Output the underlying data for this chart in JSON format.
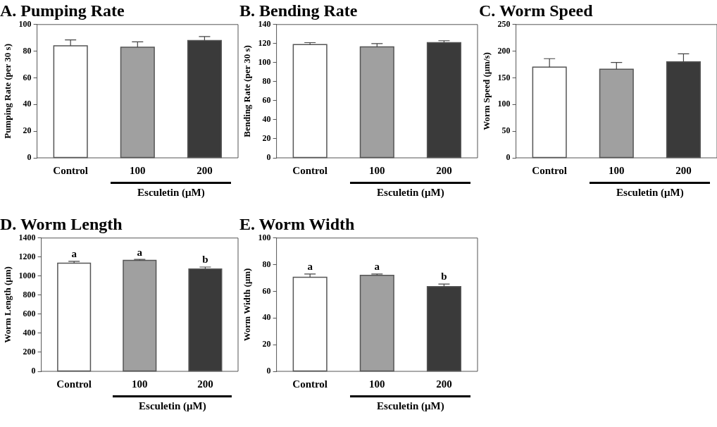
{
  "chart_data": [
    {
      "type": "bar",
      "title": "A. Pumping Rate",
      "xlabel": "Esculetin (μM)",
      "ylabel": "Pumping Rate (per 30 s)",
      "categories": [
        "Control",
        "100",
        "200"
      ],
      "values": [
        84,
        83,
        88
      ],
      "colors": [
        "#ffffff",
        "#a0a0a0",
        "#3a3a3a"
      ],
      "errors": [
        [
          84,
          88.5
        ],
        [
          83,
          87
        ],
        [
          88,
          91
        ]
      ],
      "ylim": [
        0,
        100
      ],
      "yticks": [
        0,
        20,
        40,
        60,
        80,
        100
      ]
    },
    {
      "type": "bar",
      "title": "B. Bending Rate",
      "xlabel": "Esculetin (μM)",
      "ylabel": "Bending Rate (per 30 s)",
      "categories": [
        "Control",
        "100",
        "200"
      ],
      "values": [
        119,
        116.5,
        121
      ],
      "colors": [
        "#ffffff",
        "#a0a0a0",
        "#3a3a3a"
      ],
      "errors": [
        [
          119,
          121
        ],
        [
          116.5,
          120
        ],
        [
          121,
          123
        ]
      ],
      "ylim": [
        0,
        140
      ],
      "yticks": [
        0,
        20,
        40,
        60,
        80,
        100,
        120,
        140
      ]
    },
    {
      "type": "bar",
      "title": "C. Worm Speed",
      "xlabel": "Esculetin (μM)",
      "ylabel": "Worm Speed (μm/s)",
      "categories": [
        "Control",
        "100",
        "200"
      ],
      "values": [
        170,
        166,
        180
      ],
      "colors": [
        "#ffffff",
        "#a0a0a0",
        "#3a3a3a"
      ],
      "errors": [
        [
          170,
          186
        ],
        [
          166,
          179
        ],
        [
          180,
          195
        ]
      ],
      "ylim": [
        0,
        250
      ],
      "yticks": [
        0,
        50,
        100,
        150,
        200,
        250
      ]
    },
    {
      "type": "bar",
      "title": "D. Worm Length",
      "xlabel": "Esculetin (μM)",
      "ylabel": "Worm Length (μm)",
      "categories": [
        "Control",
        "100",
        "200"
      ],
      "values": [
        1135,
        1165,
        1075
      ],
      "colors": [
        "#ffffff",
        "#a0a0a0",
        "#3a3a3a"
      ],
      "errors": [
        [
          1135,
          1155
        ],
        [
          1165,
          1175
        ],
        [
          1075,
          1095
        ]
      ],
      "ylim": [
        0,
        1400
      ],
      "yticks": [
        0,
        200,
        400,
        600,
        800,
        1000,
        1200,
        1400
      ],
      "annotations": [
        {
          "text": "a",
          "x": "Control",
          "y": 1155
        },
        {
          "text": "a",
          "x": "100",
          "y": 1175
        },
        {
          "text": "b",
          "x": "200",
          "y": 1095
        }
      ]
    },
    {
      "type": "bar",
      "title": "E. Worm Width",
      "xlabel": "Esculetin (μM)",
      "ylabel": "Worm Width (μm)",
      "categories": [
        "Control",
        "100",
        "200"
      ],
      "values": [
        70.5,
        72,
        63.5
      ],
      "colors": [
        "#ffffff",
        "#a0a0a0",
        "#3a3a3a"
      ],
      "errors": [
        [
          70.5,
          73
        ],
        [
          72,
          73
        ],
        [
          63.5,
          65.5
        ]
      ],
      "ylim": [
        0,
        100
      ],
      "yticks": [
        0,
        20,
        40,
        60,
        80,
        100
      ],
      "annotations": [
        {
          "text": "a",
          "x": "Control",
          "y": 73
        },
        {
          "text": "a",
          "x": "100",
          "y": 73
        },
        {
          "text": "b",
          "x": "200",
          "y": 65.5
        }
      ]
    }
  ]
}
